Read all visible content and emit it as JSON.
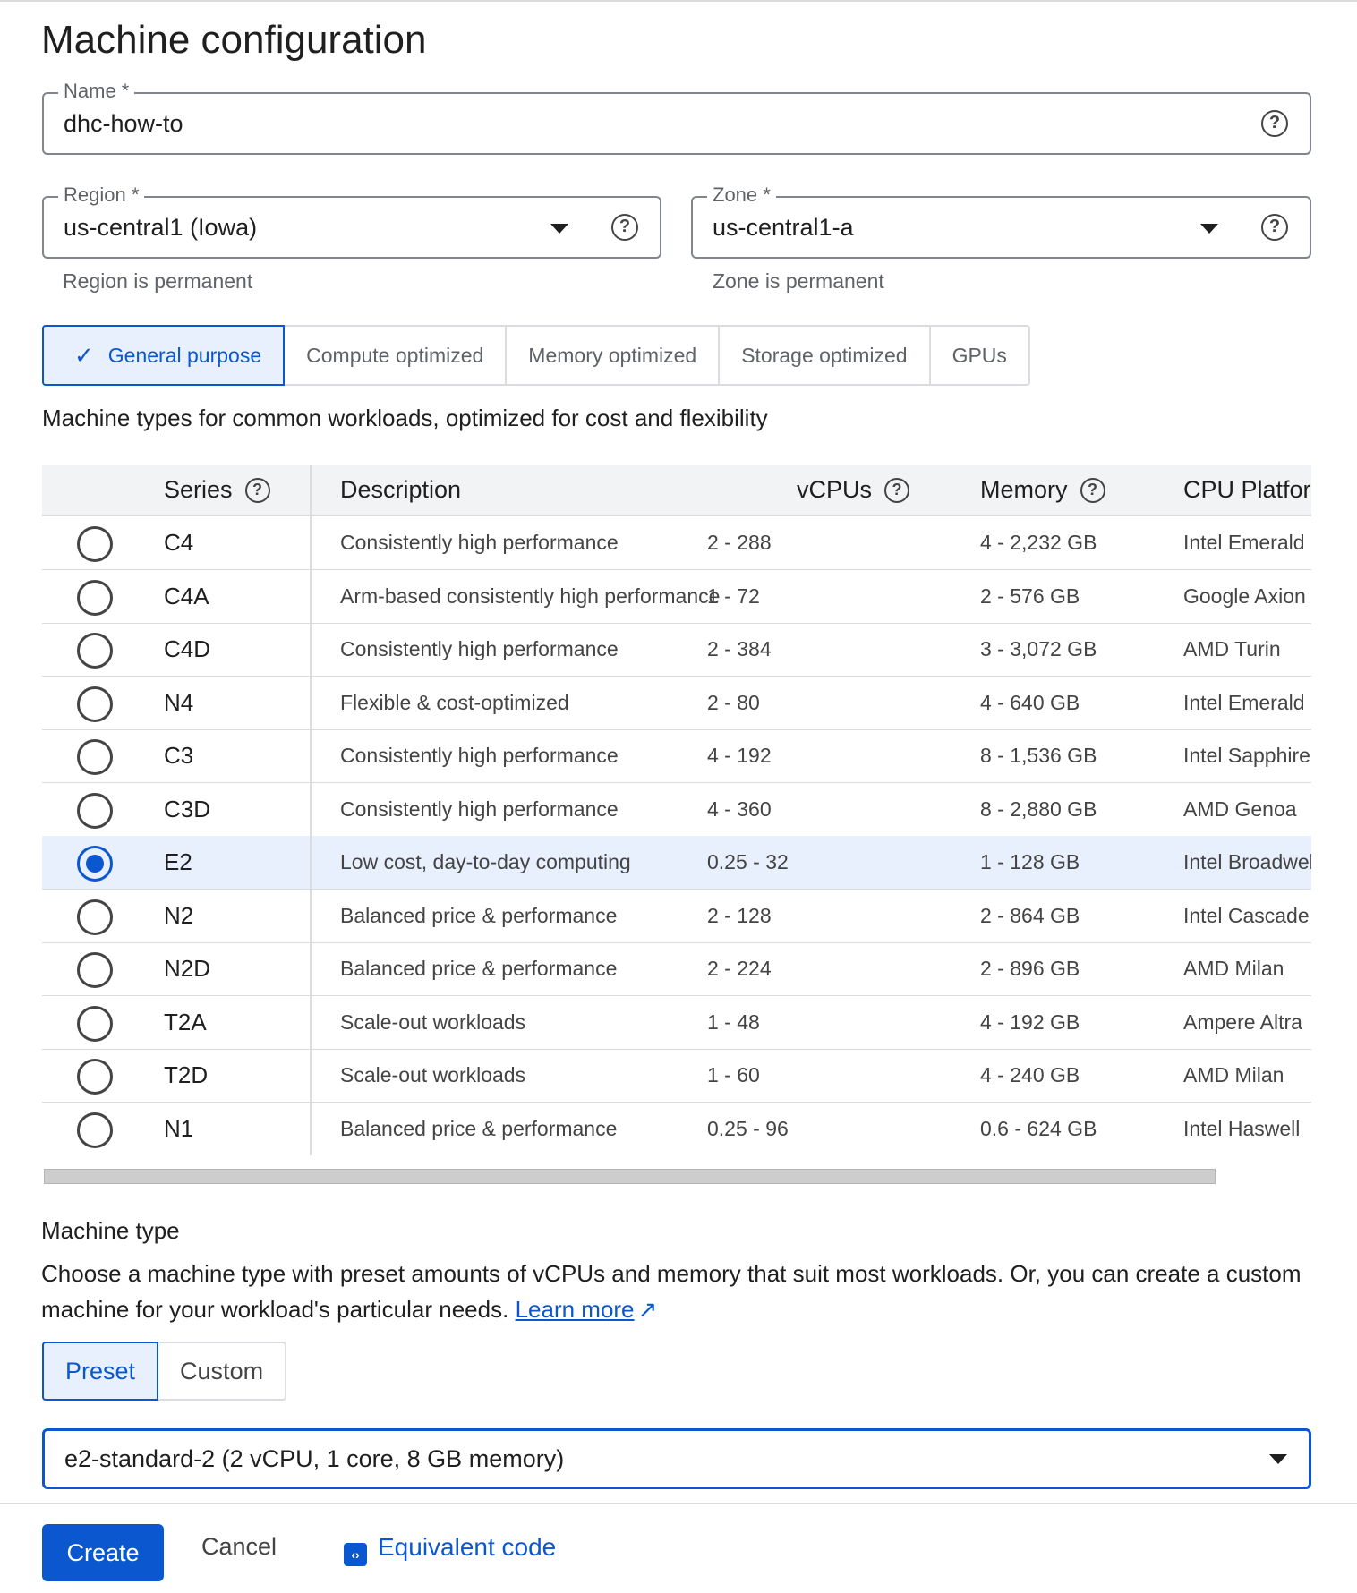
{
  "title": "Machine configuration",
  "name_field": {
    "label": "Name *",
    "value": "dhc-how-to"
  },
  "region_field": {
    "label": "Region *",
    "value": "us-central1 (Iowa)",
    "hint": "Region is permanent"
  },
  "zone_field": {
    "label": "Zone *",
    "value": "us-central1-a",
    "hint": "Zone is permanent"
  },
  "help_glyph": "?",
  "check_glyph": "✓",
  "tabs": [
    {
      "label": "General purpose",
      "selected": true
    },
    {
      "label": "Compute optimized"
    },
    {
      "label": "Memory optimized"
    },
    {
      "label": "Storage optimized"
    },
    {
      "label": "GPUs"
    }
  ],
  "tab_description": "Machine types for common workloads, optimized for cost and flexibility",
  "table": {
    "headers": {
      "series": "Series",
      "description": "Description",
      "vcpus": "vCPUs",
      "memory": "Memory",
      "cpu": "CPU Platform"
    },
    "rows": [
      {
        "series": "C4",
        "description": "Consistently high performance",
        "vcpus": "2 - 288",
        "memory": "4 - 2,232 GB",
        "cpu": "Intel Emerald Rapids"
      },
      {
        "series": "C4A",
        "description": "Arm-based consistently high performance",
        "vcpus": "1 - 72",
        "memory": "2 - 576 GB",
        "cpu": "Google Axion"
      },
      {
        "series": "C4D",
        "description": "Consistently high performance",
        "vcpus": "2 - 384",
        "memory": "3 - 3,072 GB",
        "cpu": "AMD Turin"
      },
      {
        "series": "N4",
        "description": "Flexible & cost-optimized",
        "vcpus": "2 - 80",
        "memory": "4 - 640 GB",
        "cpu": "Intel Emerald Rapids"
      },
      {
        "series": "C3",
        "description": "Consistently high performance",
        "vcpus": "4 - 192",
        "memory": "8 - 1,536 GB",
        "cpu": "Intel Sapphire Rapids"
      },
      {
        "series": "C3D",
        "description": "Consistently high performance",
        "vcpus": "4 - 360",
        "memory": "8 - 2,880 GB",
        "cpu": "AMD Genoa"
      },
      {
        "series": "E2",
        "description": "Low cost, day-to-day computing",
        "vcpus": "0.25 - 32",
        "memory": "1 - 128 GB",
        "cpu": "Intel Broadwell",
        "selected": true
      },
      {
        "series": "N2",
        "description": "Balanced price & performance",
        "vcpus": "2 - 128",
        "memory": "2 - 864 GB",
        "cpu": "Intel Cascade Lake"
      },
      {
        "series": "N2D",
        "description": "Balanced price & performance",
        "vcpus": "2 - 224",
        "memory": "2 - 896 GB",
        "cpu": "AMD Milan"
      },
      {
        "series": "T2A",
        "description": "Scale-out workloads",
        "vcpus": "1 - 48",
        "memory": "4 - 192 GB",
        "cpu": "Ampere Altra"
      },
      {
        "series": "T2D",
        "description": "Scale-out workloads",
        "vcpus": "1 - 60",
        "memory": "4 - 240 GB",
        "cpu": "AMD Milan"
      },
      {
        "series": "N1",
        "description": "Balanced price & performance",
        "vcpus": "0.25 - 96",
        "memory": "0.6 - 624 GB",
        "cpu": "Intel Haswell"
      }
    ]
  },
  "machine_type": {
    "heading": "Machine type",
    "paragraph": "Choose a machine type with preset amounts of vCPUs and memory that suit most workloads. Or, you can create a custom machine for your workload's particular needs.",
    "learn_more": "Learn more",
    "external_glyph": "↗",
    "segments": [
      {
        "label": "Preset",
        "selected": true
      },
      {
        "label": "Custom"
      }
    ],
    "selected_value": "e2-standard-2 (2 vCPU, 1 core, 8 GB memory)"
  },
  "footer": {
    "create": "Create",
    "cancel": "Cancel",
    "equivalent_code": "Equivalent code",
    "code_glyph": "‹›"
  },
  "colors": {
    "accent": "#0b57d0",
    "selected_bg": "#e8f0fe"
  }
}
